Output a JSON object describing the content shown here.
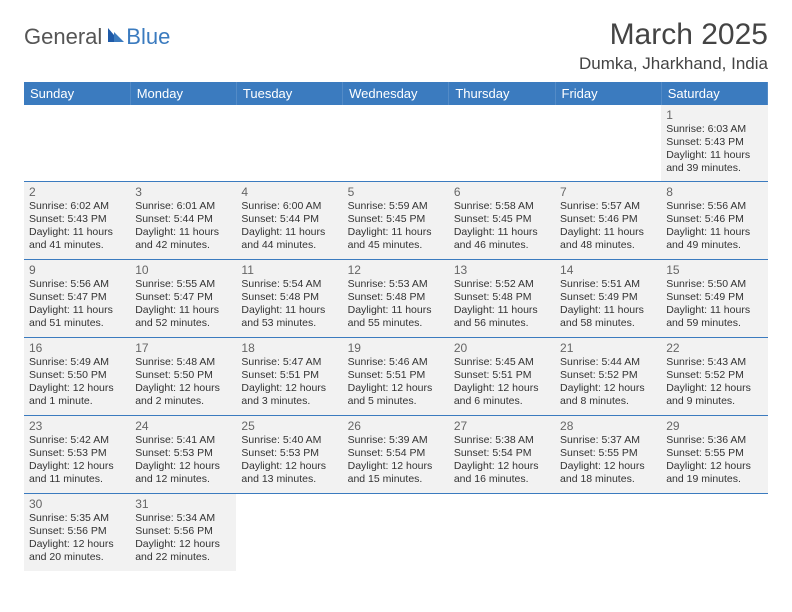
{
  "logo": {
    "part1": "General",
    "part2": "Blue"
  },
  "title": "March 2025",
  "location": "Dumka, Jharkhand, India",
  "colors": {
    "header_bg": "#3b7bbf",
    "cell_bg": "#f2f2f2",
    "border": "#3b7bbf",
    "logo_blue": "#3b7bbf",
    "text": "#333333"
  },
  "weekdays": [
    "Sunday",
    "Monday",
    "Tuesday",
    "Wednesday",
    "Thursday",
    "Friday",
    "Saturday"
  ],
  "weeks": [
    [
      null,
      null,
      null,
      null,
      null,
      null,
      {
        "day": "1",
        "sunrise": "Sunrise: 6:03 AM",
        "sunset": "Sunset: 5:43 PM",
        "daylight": "Daylight: 11 hours and 39 minutes."
      }
    ],
    [
      {
        "day": "2",
        "sunrise": "Sunrise: 6:02 AM",
        "sunset": "Sunset: 5:43 PM",
        "daylight": "Daylight: 11 hours and 41 minutes."
      },
      {
        "day": "3",
        "sunrise": "Sunrise: 6:01 AM",
        "sunset": "Sunset: 5:44 PM",
        "daylight": "Daylight: 11 hours and 42 minutes."
      },
      {
        "day": "4",
        "sunrise": "Sunrise: 6:00 AM",
        "sunset": "Sunset: 5:44 PM",
        "daylight": "Daylight: 11 hours and 44 minutes."
      },
      {
        "day": "5",
        "sunrise": "Sunrise: 5:59 AM",
        "sunset": "Sunset: 5:45 PM",
        "daylight": "Daylight: 11 hours and 45 minutes."
      },
      {
        "day": "6",
        "sunrise": "Sunrise: 5:58 AM",
        "sunset": "Sunset: 5:45 PM",
        "daylight": "Daylight: 11 hours and 46 minutes."
      },
      {
        "day": "7",
        "sunrise": "Sunrise: 5:57 AM",
        "sunset": "Sunset: 5:46 PM",
        "daylight": "Daylight: 11 hours and 48 minutes."
      },
      {
        "day": "8",
        "sunrise": "Sunrise: 5:56 AM",
        "sunset": "Sunset: 5:46 PM",
        "daylight": "Daylight: 11 hours and 49 minutes."
      }
    ],
    [
      {
        "day": "9",
        "sunrise": "Sunrise: 5:56 AM",
        "sunset": "Sunset: 5:47 PM",
        "daylight": "Daylight: 11 hours and 51 minutes."
      },
      {
        "day": "10",
        "sunrise": "Sunrise: 5:55 AM",
        "sunset": "Sunset: 5:47 PM",
        "daylight": "Daylight: 11 hours and 52 minutes."
      },
      {
        "day": "11",
        "sunrise": "Sunrise: 5:54 AM",
        "sunset": "Sunset: 5:48 PM",
        "daylight": "Daylight: 11 hours and 53 minutes."
      },
      {
        "day": "12",
        "sunrise": "Sunrise: 5:53 AM",
        "sunset": "Sunset: 5:48 PM",
        "daylight": "Daylight: 11 hours and 55 minutes."
      },
      {
        "day": "13",
        "sunrise": "Sunrise: 5:52 AM",
        "sunset": "Sunset: 5:48 PM",
        "daylight": "Daylight: 11 hours and 56 minutes."
      },
      {
        "day": "14",
        "sunrise": "Sunrise: 5:51 AM",
        "sunset": "Sunset: 5:49 PM",
        "daylight": "Daylight: 11 hours and 58 minutes."
      },
      {
        "day": "15",
        "sunrise": "Sunrise: 5:50 AM",
        "sunset": "Sunset: 5:49 PM",
        "daylight": "Daylight: 11 hours and 59 minutes."
      }
    ],
    [
      {
        "day": "16",
        "sunrise": "Sunrise: 5:49 AM",
        "sunset": "Sunset: 5:50 PM",
        "daylight": "Daylight: 12 hours and 1 minute."
      },
      {
        "day": "17",
        "sunrise": "Sunrise: 5:48 AM",
        "sunset": "Sunset: 5:50 PM",
        "daylight": "Daylight: 12 hours and 2 minutes."
      },
      {
        "day": "18",
        "sunrise": "Sunrise: 5:47 AM",
        "sunset": "Sunset: 5:51 PM",
        "daylight": "Daylight: 12 hours and 3 minutes."
      },
      {
        "day": "19",
        "sunrise": "Sunrise: 5:46 AM",
        "sunset": "Sunset: 5:51 PM",
        "daylight": "Daylight: 12 hours and 5 minutes."
      },
      {
        "day": "20",
        "sunrise": "Sunrise: 5:45 AM",
        "sunset": "Sunset: 5:51 PM",
        "daylight": "Daylight: 12 hours and 6 minutes."
      },
      {
        "day": "21",
        "sunrise": "Sunrise: 5:44 AM",
        "sunset": "Sunset: 5:52 PM",
        "daylight": "Daylight: 12 hours and 8 minutes."
      },
      {
        "day": "22",
        "sunrise": "Sunrise: 5:43 AM",
        "sunset": "Sunset: 5:52 PM",
        "daylight": "Daylight: 12 hours and 9 minutes."
      }
    ],
    [
      {
        "day": "23",
        "sunrise": "Sunrise: 5:42 AM",
        "sunset": "Sunset: 5:53 PM",
        "daylight": "Daylight: 12 hours and 11 minutes."
      },
      {
        "day": "24",
        "sunrise": "Sunrise: 5:41 AM",
        "sunset": "Sunset: 5:53 PM",
        "daylight": "Daylight: 12 hours and 12 minutes."
      },
      {
        "day": "25",
        "sunrise": "Sunrise: 5:40 AM",
        "sunset": "Sunset: 5:53 PM",
        "daylight": "Daylight: 12 hours and 13 minutes."
      },
      {
        "day": "26",
        "sunrise": "Sunrise: 5:39 AM",
        "sunset": "Sunset: 5:54 PM",
        "daylight": "Daylight: 12 hours and 15 minutes."
      },
      {
        "day": "27",
        "sunrise": "Sunrise: 5:38 AM",
        "sunset": "Sunset: 5:54 PM",
        "daylight": "Daylight: 12 hours and 16 minutes."
      },
      {
        "day": "28",
        "sunrise": "Sunrise: 5:37 AM",
        "sunset": "Sunset: 5:55 PM",
        "daylight": "Daylight: 12 hours and 18 minutes."
      },
      {
        "day": "29",
        "sunrise": "Sunrise: 5:36 AM",
        "sunset": "Sunset: 5:55 PM",
        "daylight": "Daylight: 12 hours and 19 minutes."
      }
    ],
    [
      {
        "day": "30",
        "sunrise": "Sunrise: 5:35 AM",
        "sunset": "Sunset: 5:56 PM",
        "daylight": "Daylight: 12 hours and 20 minutes."
      },
      {
        "day": "31",
        "sunrise": "Sunrise: 5:34 AM",
        "sunset": "Sunset: 5:56 PM",
        "daylight": "Daylight: 12 hours and 22 minutes."
      },
      null,
      null,
      null,
      null,
      null
    ]
  ]
}
